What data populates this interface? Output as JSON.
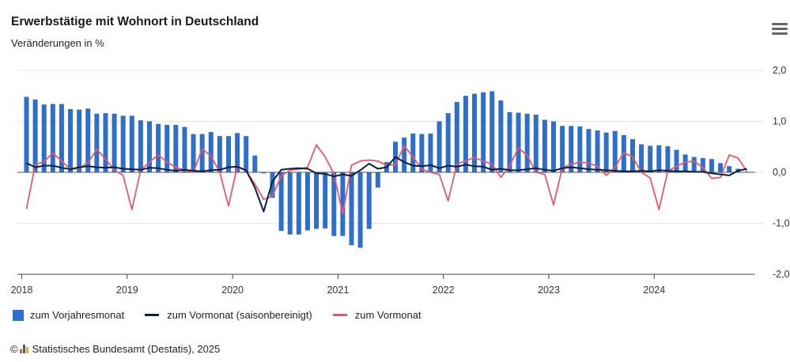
{
  "header": {
    "title": "Erwerbstätige mit Wohnort in Deutschland",
    "subtitle": "Veränderungen in %",
    "menu_icon": "hamburger-menu-icon"
  },
  "footer": {
    "copyright_symbol": "©",
    "logo_icon": "destatis-logo-icon",
    "source_text": "Statistisches Bundesamt (Destatis), 2025"
  },
  "colors": {
    "bars": "#2e6fcc",
    "line_seasonal": "#0b1f3f",
    "line_raw": "#e8576d",
    "grid": "#e4e4e4",
    "axis": "#444444"
  },
  "chart_data": {
    "type": "bar",
    "title": "Erwerbstätige mit Wohnort in Deutschland",
    "subtitle": "Veränderungen in %",
    "x_start": "2018-01",
    "x_end": "2024-11",
    "x_ticks": [
      "2018",
      "2019",
      "2020",
      "2021",
      "2022",
      "2023",
      "2024"
    ],
    "y_ticks": [
      "2,0",
      "1,0",
      "0,0",
      "-1,0",
      "-2,0"
    ],
    "ylim": [
      -2.0,
      2.0
    ],
    "y_axis_side": "right",
    "grid": true,
    "legend_position": "bottom-left",
    "series": [
      {
        "name": "zum Vorjahresmonat",
        "type": "bar",
        "values": [
          1.48,
          1.43,
          1.33,
          1.34,
          1.34,
          1.24,
          1.23,
          1.25,
          1.15,
          1.16,
          1.15,
          1.11,
          1.11,
          1.02,
          1.0,
          0.95,
          0.93,
          0.93,
          0.89,
          0.75,
          0.75,
          0.79,
          0.71,
          0.71,
          0.77,
          0.71,
          0.33,
          -0.02,
          -0.5,
          -1.15,
          -1.22,
          -1.22,
          -1.14,
          -1.11,
          -1.1,
          -1.25,
          -1.25,
          -1.43,
          -1.48,
          -1.11,
          -0.3,
          0.2,
          0.6,
          0.68,
          0.76,
          0.75,
          0.76,
          1.0,
          1.16,
          1.38,
          1.5,
          1.54,
          1.57,
          1.59,
          1.41,
          1.18,
          1.17,
          1.15,
          1.13,
          1.03,
          1.0,
          0.91,
          0.91,
          0.9,
          0.85,
          0.82,
          0.78,
          0.81,
          0.73,
          0.65,
          0.55,
          0.52,
          0.53,
          0.51,
          0.44,
          0.35,
          0.3,
          0.28,
          0.26,
          0.18,
          0.12,
          0.07,
          0.01
        ]
      },
      {
        "name": "zum Vormonat (saisonbereinigt)",
        "type": "line",
        "values": [
          0.18,
          0.1,
          0.13,
          0.13,
          0.09,
          0.06,
          0.1,
          0.12,
          0.1,
          0.09,
          0.1,
          0.07,
          0.06,
          0.05,
          0.09,
          0.08,
          0.05,
          0.03,
          0.05,
          0.03,
          0.02,
          0.04,
          0.05,
          0.1,
          0.11,
          0.04,
          -0.3,
          -0.77,
          -0.18,
          0.05,
          0.07,
          0.08,
          0.07,
          -0.02,
          -0.03,
          -0.08,
          -0.04,
          -0.07,
          0.04,
          0.17,
          0.07,
          0.1,
          0.3,
          0.2,
          0.13,
          0.12,
          0.14,
          0.08,
          0.13,
          0.11,
          0.15,
          0.12,
          0.11,
          0.05,
          0.07,
          0.04,
          0.04,
          0.06,
          0.08,
          0.05,
          0.03,
          0.08,
          0.1,
          0.08,
          0.06,
          0.05,
          0.04,
          0.03,
          0.02,
          0.02,
          0.03,
          0.02,
          0.04,
          0.03,
          0.02,
          0.02,
          0.01,
          0.01,
          -0.02,
          -0.04,
          -0.06,
          0.03,
          0.07
        ]
      },
      {
        "name": "zum Vormonat",
        "type": "line",
        "values": [
          -0.72,
          0.15,
          0.21,
          0.38,
          0.22,
          0.06,
          0.08,
          0.19,
          0.45,
          0.26,
          0.04,
          -0.06,
          -0.73,
          0.04,
          0.2,
          0.34,
          0.2,
          0.1,
          0.04,
          0.0,
          0.46,
          0.32,
          0.0,
          -0.66,
          0.12,
          0.03,
          -0.23,
          -0.53,
          -0.47,
          -0.07,
          0.04,
          0.06,
          0.1,
          0.54,
          0.3,
          -0.03,
          -0.82,
          0.14,
          0.22,
          0.24,
          0.22,
          0.14,
          0.15,
          0.52,
          0.3,
          0.06,
          0.0,
          -0.04,
          -0.56,
          0.16,
          0.23,
          0.29,
          0.22,
          0.16,
          -0.1,
          0.13,
          0.48,
          0.33,
          0.0,
          -0.04,
          -0.64,
          0.09,
          0.16,
          0.2,
          0.18,
          0.12,
          -0.06,
          0.1,
          0.39,
          0.3,
          0.0,
          -0.11,
          -0.73,
          0.02,
          0.12,
          0.2,
          0.22,
          0.09,
          -0.12,
          -0.1,
          0.34,
          0.28,
          0.02
        ]
      }
    ]
  }
}
